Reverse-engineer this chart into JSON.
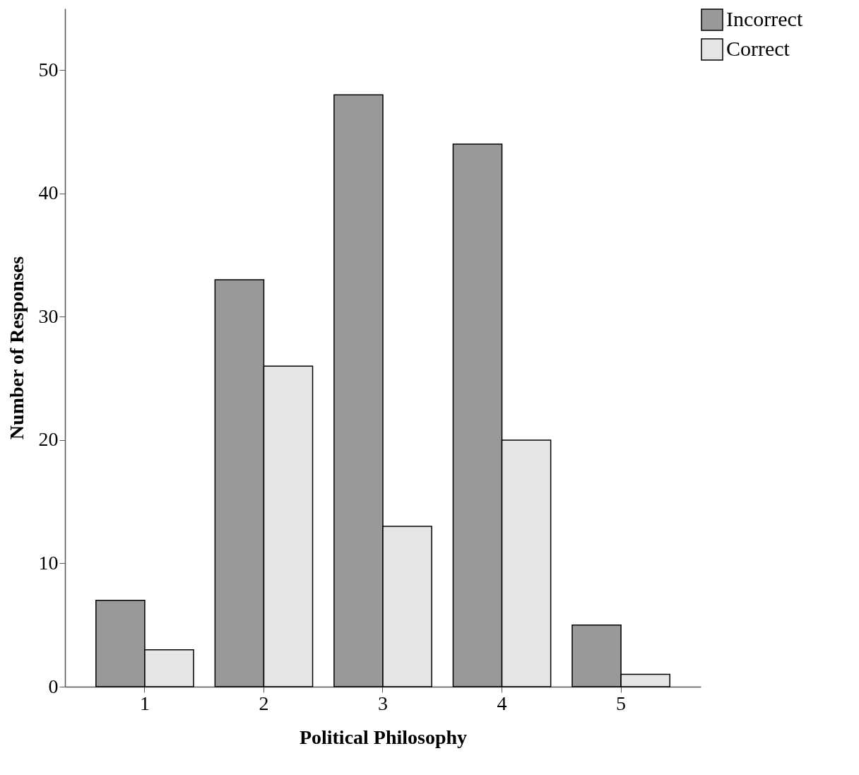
{
  "chart_data": {
    "type": "bar",
    "xlabel": "Political Philosophy",
    "ylabel": "Number of Responses",
    "categories": [
      "1",
      "2",
      "3",
      "4",
      "5"
    ],
    "series": [
      {
        "name": "Incorrect",
        "color": "#999999",
        "values": [
          7,
          33,
          48,
          44,
          5
        ]
      },
      {
        "name": "Correct",
        "color": "#e5e5e5",
        "values": [
          3,
          26,
          13,
          20,
          1
        ]
      }
    ],
    "ylim": [
      0,
      55
    ],
    "yticks": [
      0,
      10,
      20,
      30,
      40,
      50
    ],
    "grid": false,
    "legend": "top right"
  }
}
